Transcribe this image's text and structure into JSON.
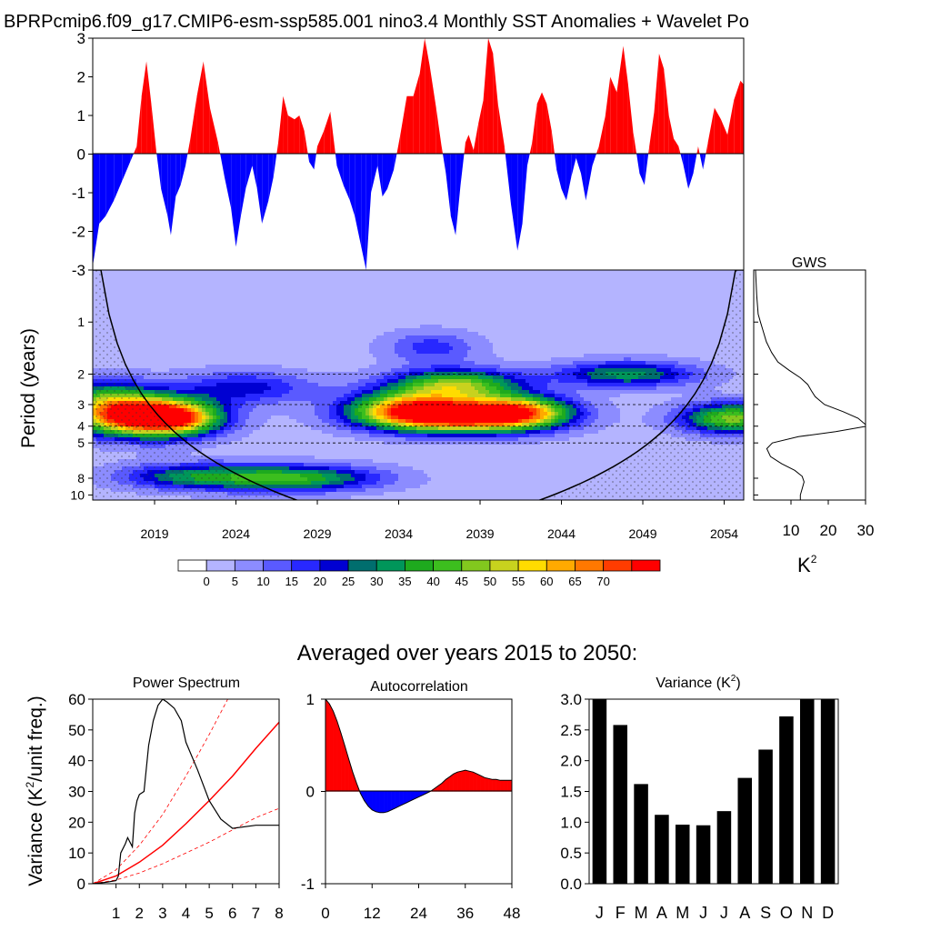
{
  "title": "BPRPcmip6.f09_g17.CMIP6-esm-ssp585.001 nino3.4 Monthly SST Anomalies + Wavelet Po",
  "averaged_title": "Averaged over years 2015 to 2050:",
  "wavelet_ylabel": "Period (years)",
  "gws_title": "GWS",
  "gws_unit": "K",
  "gws_unit_sup": "2",
  "power_title": "Power Spectrum",
  "autocorr_title": "Autocorrelation",
  "variance_title": "Variance (K",
  "variance_title_sup": "2",
  "variance_title_end": ")",
  "power_ylabel_a": "Variance (K",
  "power_ylabel_sup": "2",
  "power_ylabel_b": "/unit freq.)",
  "colors": {
    "positive": "#ff0000",
    "negative": "#0000ff",
    "bar": "#000000",
    "spectrum": "#000000",
    "red_noise": "#ff0000"
  },
  "chart_data": [
    {
      "id": "timeseries",
      "type": "area",
      "xlim": [
        2015.2,
        2055.2
      ],
      "ylim": [
        -3,
        3
      ],
      "yticks": [
        "3",
        "2",
        "1",
        "0",
        "-1",
        "-2",
        "-3"
      ],
      "yticks_values": [
        3,
        2,
        1,
        0,
        -1,
        -2,
        -3
      ],
      "x_years": [
        2015.2,
        2015.6,
        2016.0,
        2016.5,
        2017.0,
        2017.5,
        2017.9,
        2018.2,
        2018.5,
        2018.8,
        2019.1,
        2019.4,
        2019.8,
        2020.0,
        2020.3,
        2020.6,
        2020.9,
        2021.2,
        2021.6,
        2022.0,
        2022.4,
        2022.9,
        2023.3,
        2023.7,
        2024.0,
        2024.3,
        2024.6,
        2025.0,
        2025.3,
        2025.6,
        2026.0,
        2026.3,
        2026.6,
        2026.9,
        2027.2,
        2027.6,
        2027.9,
        2028.2,
        2028.5,
        2028.8,
        2029.0,
        2029.4,
        2029.8,
        2030.2,
        2030.6,
        2031.0,
        2031.3,
        2031.7,
        2032.0,
        2032.3,
        2032.7,
        2033.0,
        2033.3,
        2033.7,
        2034.1,
        2034.5,
        2034.9,
        2035.3,
        2035.6,
        2035.9,
        2036.3,
        2036.6,
        2036.9,
        2037.2,
        2037.5,
        2037.8,
        2038.1,
        2038.3,
        2038.6,
        2038.9,
        2039.2,
        2039.5,
        2039.8,
        2040.1,
        2040.5,
        2040.9,
        2041.3,
        2041.6,
        2041.9,
        2042.2,
        2042.5,
        2042.8,
        2043.1,
        2043.4,
        2043.7,
        2044.0,
        2044.3,
        2044.6,
        2044.9,
        2045.2,
        2045.5,
        2045.9,
        2046.3,
        2046.7,
        2047.0,
        2047.4,
        2047.8,
        2048.1,
        2048.4,
        2048.8,
        2049.1,
        2049.4,
        2049.7,
        2050.0,
        2050.3,
        2050.6,
        2050.9,
        2051.2,
        2051.5,
        2051.8,
        2052.1,
        2052.4,
        2052.7,
        2053.0,
        2053.4,
        2053.8,
        2054.2,
        2054.6,
        2055.0,
        2055.2
      ],
      "y_values": [
        -2.9,
        -1.8,
        -1.6,
        -1.2,
        -0.7,
        -0.2,
        0.2,
        1.5,
        2.4,
        1.3,
        0.1,
        -0.9,
        -1.6,
        -2.1,
        -1.1,
        -0.8,
        -0.3,
        0.4,
        1.5,
        2.4,
        1.2,
        0.3,
        -0.6,
        -1.4,
        -2.4,
        -1.6,
        -0.9,
        -0.3,
        -0.9,
        -1.8,
        -1.2,
        -0.6,
        0.3,
        1.5,
        1.0,
        0.9,
        1.0,
        0.6,
        -0.2,
        -0.4,
        0.2,
        0.6,
        1.1,
        -0.3,
        -0.8,
        -1.2,
        -1.6,
        -2.4,
        -3.0,
        -1.0,
        -0.3,
        -1.1,
        -0.9,
        -0.4,
        0.5,
        1.5,
        1.5,
        2.1,
        3.0,
        2.3,
        1.2,
        0.3,
        -0.5,
        -1.6,
        -2.1,
        -0.8,
        0.3,
        0.5,
        0.1,
        0.8,
        1.4,
        3.0,
        2.6,
        1.3,
        0.2,
        -1.3,
        -2.5,
        -1.8,
        -0.3,
        0.3,
        1.3,
        1.6,
        1.3,
        0.6,
        -0.4,
        -0.9,
        -1.2,
        -0.6,
        -0.1,
        -0.5,
        -1.2,
        -0.3,
        0.2,
        1.0,
        2.0,
        1.6,
        2.8,
        1.8,
        0.6,
        -0.5,
        -0.8,
        0.2,
        1.1,
        2.6,
        2.2,
        1.0,
        0.4,
        0.2,
        -0.3,
        -0.9,
        -0.5,
        0.2,
        -0.4,
        0.3,
        1.2,
        0.9,
        0.5,
        1.4,
        1.9,
        1.8
      ]
    },
    {
      "id": "wavelet",
      "type": "heatmap",
      "xlim": [
        2015.2,
        2055.2
      ],
      "xticks": [
        "2019",
        "2024",
        "2029",
        "2034",
        "2039",
        "2044",
        "2049",
        "2054"
      ],
      "xticks_values": [
        2019,
        2024,
        2029,
        2034,
        2039,
        2044,
        2049,
        2054
      ],
      "ylim": [
        0.5,
        10.7
      ],
      "yscale": "log",
      "yticks": [
        "1",
        "2",
        "3",
        "4",
        "5",
        "8",
        "10"
      ],
      "yticks_values": [
        1,
        2,
        3,
        4,
        5,
        8,
        10
      ],
      "dashed_periods": [
        2,
        3,
        4,
        5
      ],
      "colorbar_labels": [
        "0",
        "5",
        "10",
        "15",
        "20",
        "25",
        "30",
        "35",
        "40",
        "45",
        "50",
        "55",
        "60",
        "65",
        "70"
      ],
      "colorbar_levels": [
        0,
        5,
        10,
        15,
        20,
        25,
        30,
        35,
        40,
        45,
        50,
        55,
        60,
        65,
        70
      ],
      "colorbar_colors": [
        "#ffffff",
        "#b4b4ff",
        "#8c8cff",
        "#5a5aff",
        "#2828ff",
        "#0000d2",
        "#006e6e",
        "#00965a",
        "#1eaa1e",
        "#3cbe1e",
        "#82c81e",
        "#c8d21e",
        "#ffdc00",
        "#ffaa00",
        "#ff7800",
        "#ff3c00",
        "#ff0000"
      ],
      "power_blobs": [
        {
          "year": 2017.8,
          "period": 3.5,
          "peak": 75,
          "sx": 2.6,
          "sp": 0.18
        },
        {
          "year": 2020.5,
          "period": 3.6,
          "peak": 45,
          "sx": 2.0,
          "sp": 0.16
        },
        {
          "year": 2037.5,
          "period": 3.5,
          "peak": 75,
          "sx": 3.6,
          "sp": 0.15
        },
        {
          "year": 2041.5,
          "period": 3.3,
          "peak": 45,
          "sx": 2.2,
          "sp": 0.15
        },
        {
          "year": 2034.5,
          "period": 3.1,
          "peak": 40,
          "sx": 2.5,
          "sp": 0.16
        },
        {
          "year": 2054.5,
          "period": 3.6,
          "peak": 45,
          "sx": 2.2,
          "sp": 0.14
        },
        {
          "year": 2037.5,
          "period": 2.3,
          "peak": 45,
          "sx": 2.8,
          "sp": 0.14
        },
        {
          "year": 2024.5,
          "period": 2.4,
          "peak": 20,
          "sx": 3.0,
          "sp": 0.15
        },
        {
          "year": 2027.5,
          "period": 8.0,
          "peak": 38,
          "sx": 3.6,
          "sp": 0.12
        },
        {
          "year": 2021.0,
          "period": 7.8,
          "peak": 25,
          "sx": 3.0,
          "sp": 0.12
        },
        {
          "year": 2048.0,
          "period": 2.0,
          "peak": 30,
          "sx": 3.0,
          "sp": 0.12
        },
        {
          "year": 2016.0,
          "period": 2.7,
          "peak": 25,
          "sx": 2.0,
          "sp": 0.18
        },
        {
          "year": 2036.0,
          "period": 1.4,
          "peak": 15,
          "sx": 2.0,
          "sp": 0.15
        }
      ]
    },
    {
      "id": "gws",
      "type": "line",
      "xlim": [
        0,
        30
      ],
      "xticks": [
        "10",
        "20",
        "30"
      ],
      "xticks_values": [
        10,
        20,
        30
      ],
      "period": [
        0.5,
        0.7,
        0.9,
        1.0,
        1.1,
        1.3,
        1.5,
        1.7,
        1.9,
        2.1,
        2.3,
        2.5,
        2.7,
        3.0,
        3.3,
        3.6,
        4.0,
        4.3,
        4.6,
        5.0,
        5.4,
        6.0,
        6.6,
        7.2,
        7.8,
        8.4,
        9.2,
        10.0,
        10.7
      ],
      "power": [
        0.5,
        0.8,
        1.2,
        1.8,
        2.4,
        3.4,
        4.8,
        6.5,
        9.5,
        12.5,
        14.5,
        15.5,
        16.5,
        19.0,
        24.0,
        28.0,
        30.5,
        22.0,
        12.0,
        5.0,
        3.5,
        4.5,
        7.5,
        11.0,
        13.0,
        13.5,
        13.0,
        12.5,
        12.5
      ]
    },
    {
      "id": "power_spectrum",
      "type": "line",
      "title": "Power Spectrum",
      "xlim": [
        0,
        8
      ],
      "ylim": [
        0,
        60
      ],
      "xticks": [
        "1",
        "2",
        "3",
        "4",
        "5",
        "6",
        "7",
        "8"
      ],
      "xticks_values": [
        1,
        2,
        3,
        4,
        5,
        6,
        7,
        8
      ],
      "yticks": [
        "0",
        "10",
        "20",
        "30",
        "40",
        "50",
        "60"
      ],
      "yticks_values": [
        0,
        10,
        20,
        30,
        40,
        50,
        60
      ],
      "spectrum_x": [
        0,
        0.6,
        1.0,
        1.1,
        1.2,
        1.4,
        1.5,
        1.7,
        1.8,
        1.9,
        2.0,
        2.2,
        2.4,
        2.6,
        2.8,
        3.0,
        3.2,
        3.5,
        3.8,
        4.0,
        4.5,
        5.0,
        5.5,
        6.0,
        7.0,
        8.0
      ],
      "spectrum_y": [
        0,
        0.5,
        1.0,
        2.5,
        10,
        13,
        15,
        12,
        23,
        27,
        29,
        30,
        45,
        53,
        58,
        60,
        59,
        57,
        53,
        46,
        37,
        27,
        21,
        18,
        19,
        19
      ],
      "red_noise_x": [
        0,
        1,
        2,
        3,
        4,
        5,
        6,
        7,
        8
      ],
      "red_noise_y": [
        0,
        2.5,
        7,
        12.5,
        19.5,
        27,
        35,
        44,
        52.5
      ],
      "red_upper_y": [
        0,
        4.5,
        12.5,
        22.5,
        35,
        48.5,
        63,
        79,
        95
      ],
      "red_lower_y": [
        0,
        1.2,
        3.5,
        6.5,
        10,
        13.5,
        17.5,
        21.5,
        24.5
      ]
    },
    {
      "id": "autocorrelation",
      "type": "area",
      "title": "Autocorrelation",
      "xlim": [
        0,
        48
      ],
      "ylim": [
        -1,
        1
      ],
      "xticks": [
        "0",
        "12",
        "24",
        "36",
        "48"
      ],
      "xticks_values": [
        0,
        12,
        24,
        36,
        48
      ],
      "yticks": [
        "1",
        "0",
        "-1"
      ],
      "yticks_values": [
        1,
        0,
        -1
      ],
      "lag": [
        0,
        1,
        2,
        3,
        4,
        5,
        6,
        7,
        8,
        9,
        10,
        11,
        12,
        13,
        14,
        15,
        16,
        17,
        18,
        19,
        20,
        21,
        22,
        23,
        24,
        25,
        26,
        27,
        28,
        29,
        30,
        31,
        32,
        33,
        34,
        35,
        36,
        37,
        38,
        39,
        40,
        41,
        42,
        43,
        44,
        45,
        46,
        47,
        48
      ],
      "value": [
        1.0,
        0.95,
        0.87,
        0.76,
        0.63,
        0.49,
        0.35,
        0.21,
        0.09,
        -0.02,
        -0.1,
        -0.16,
        -0.2,
        -0.22,
        -0.23,
        -0.23,
        -0.22,
        -0.2,
        -0.18,
        -0.16,
        -0.14,
        -0.12,
        -0.1,
        -0.08,
        -0.06,
        -0.04,
        -0.02,
        0.0,
        0.03,
        0.06,
        0.09,
        0.13,
        0.16,
        0.19,
        0.21,
        0.22,
        0.23,
        0.22,
        0.21,
        0.19,
        0.17,
        0.15,
        0.14,
        0.13,
        0.13,
        0.12,
        0.12,
        0.12,
        0.12
      ]
    },
    {
      "id": "monthly_variance",
      "type": "bar",
      "title": "Variance (K2)",
      "categories": [
        "J",
        "F",
        "M",
        "A",
        "M",
        "J",
        "J",
        "A",
        "S",
        "O",
        "N",
        "D"
      ],
      "values": [
        3.0,
        2.58,
        1.62,
        1.12,
        0.96,
        0.95,
        1.18,
        1.72,
        2.18,
        2.72,
        3.0,
        3.0
      ],
      "ylim": [
        0,
        3.0
      ],
      "yticks": [
        "0.0",
        "0.5",
        "1.0",
        "1.5",
        "2.0",
        "2.5",
        "3.0"
      ],
      "yticks_values": [
        0,
        0.5,
        1.0,
        1.5,
        2.0,
        2.5,
        3.0
      ]
    }
  ]
}
